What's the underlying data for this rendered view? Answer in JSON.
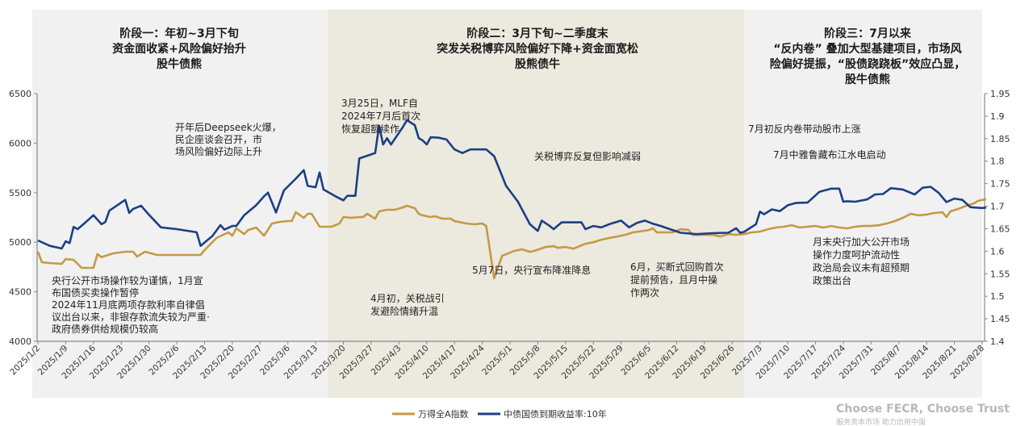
{
  "colors": {
    "phase1_bg": "#f1f1f1",
    "phase2_bg": "#ece9df",
    "phase3_bg": "#f1f1f1",
    "gold": "#c49a45",
    "navy": "#1c3f85",
    "axis": "#888888"
  },
  "phases": [
    {
      "lines": [
        "阶段一：年初~3月下旬",
        "资金面收紧+风险偏好抬升",
        "股牛债熊"
      ],
      "start_day": -3,
      "end_day": 73
    },
    {
      "lines": [
        "阶段二：3月下旬~二季度末",
        "突发关税博弈风险偏好下降+资金面宽松",
        "股熊债牛"
      ],
      "start_day": 73,
      "end_day": 178
    },
    {
      "lines": [
        "阶段三：7月以来",
        "“反内卷” 叠加大型基建项目，市场风",
        "险偏好提振，“股债跷跷板”效应凸显，",
        "股牛债熊"
      ],
      "start_day": 178,
      "end_day": 238
    }
  ],
  "annotations": [
    {
      "lines": [
        "开年后Deepseek火爆，",
        "民企座谈会召开，市",
        "场风险偏好边际上升"
      ]
    },
    {
      "lines": [
        "央行公开市场操作较为谨慎，1月宣",
        "布国债买卖操作暂停",
        "2024年11月底两项存款利率自律倡",
        "议出台以来，非银存款流失较为严重·",
        "政府债券供给规模仍较高"
      ]
    },
    {
      "lines": [
        "3月25日，MLF自",
        "2024年7月后首次",
        "恢复超额续作"
      ]
    },
    {
      "lines": [
        "关税博弈反复但影响减弱"
      ]
    },
    {
      "lines": [
        "4月初，关税战引",
        "发避险情绪升温"
      ]
    },
    {
      "lines": [
        "5月7日，央行宣布降准降息"
      ]
    },
    {
      "lines": [
        "6月，买断式回购首次",
        "提前预告，且月中操",
        "作两次"
      ]
    },
    {
      "lines": [
        "7月初反内卷带动股市上涨"
      ]
    },
    {
      "lines": [
        "7月中雅鲁藏布江水电启动"
      ]
    },
    {
      "lines": [
        "月末央行加大公开市场",
        "操作力度呵护流动性",
        "政治局会议未有超预期",
        "政策出台"
      ]
    }
  ],
  "branding": {
    "slogan": "Choose FECR, Choose Trust",
    "sub": "服务资本市场  助力信用中国"
  },
  "chart_data": {
    "type": "line",
    "title": "",
    "xlabel": "",
    "ylabel_left": "",
    "ylabel_right": "",
    "x_start_date": "2025/1/2",
    "x_unit": "days since 2025/1/2",
    "xlim": [
      0,
      239
    ],
    "ylim_left": [
      4000,
      6500
    ],
    "ylim_right": [
      1.4,
      1.95
    ],
    "yticks_left": [
      "6500",
      "6000",
      "5500",
      "5000",
      "4500",
      "4000"
    ],
    "yticks_right": [
      "1.95",
      "1.9",
      "1.85",
      "1.8",
      "1.75",
      "1.7",
      "1.65",
      "1.6",
      "1.55",
      "1.5",
      "1.45",
      "1.4"
    ],
    "xticks": [
      "2025/1/2",
      "2025/1/9",
      "2025/1/16",
      "2025/1/23",
      "2025/1/30",
      "2025/2/6",
      "2025/2/13",
      "2025/2/20",
      "2025/2/27",
      "2025/3/6",
      "2025/3/13",
      "2025/3/20",
      "2025/3/27",
      "2025/4/3",
      "2025/4/10",
      "2025/4/17",
      "2025/4/24",
      "2025/5/1",
      "2025/5/8",
      "2025/5/15",
      "2025/5/22",
      "2025/5/29",
      "2025/6/5",
      "2025/6/12",
      "2025/6/19",
      "2025/6/26",
      "2025/7/3",
      "2025/7/10",
      "2025/7/17",
      "2025/7/24",
      "2025/7/31",
      "2025/8/7",
      "2025/8/14",
      "2025/8/21",
      "2025/8/28"
    ],
    "legend_position": "bottom",
    "grid": false,
    "series": [
      {
        "name": "万得全A指数",
        "axis": "left",
        "points": [
          [
            0,
            4904
          ],
          [
            1,
            4798
          ],
          [
            3,
            4790
          ],
          [
            6,
            4782
          ],
          [
            7,
            4830
          ],
          [
            9,
            4822
          ],
          [
            11,
            4741
          ],
          [
            13,
            4741
          ],
          [
            14,
            4741
          ],
          [
            15,
            4880
          ],
          [
            16,
            4849
          ],
          [
            19,
            4888
          ],
          [
            22,
            4904
          ],
          [
            24,
            4904
          ],
          [
            25,
            4855
          ],
          [
            27,
            4904
          ],
          [
            30,
            4871
          ],
          [
            34,
            4871
          ],
          [
            36,
            4871
          ],
          [
            38,
            4871
          ],
          [
            39,
            4871
          ],
          [
            40,
            4871
          ],
          [
            41,
            4871
          ],
          [
            42,
            4920
          ],
          [
            45,
            5042
          ],
          [
            48,
            5099
          ],
          [
            49,
            5066
          ],
          [
            50,
            5140
          ],
          [
            52,
            5082
          ],
          [
            53,
            5123
          ],
          [
            55,
            5148
          ],
          [
            57,
            5066
          ],
          [
            59,
            5189
          ],
          [
            61,
            5205
          ],
          [
            63,
            5213
          ],
          [
            64,
            5213
          ],
          [
            65,
            5303
          ],
          [
            67,
            5246
          ],
          [
            68,
            5287
          ],
          [
            69,
            5287
          ],
          [
            71,
            5156
          ],
          [
            72,
            5156
          ],
          [
            74,
            5156
          ],
          [
            76,
            5189
          ],
          [
            77,
            5254
          ],
          [
            79,
            5246
          ],
          [
            81,
            5254
          ],
          [
            82,
            5254
          ],
          [
            83,
            5287
          ],
          [
            85,
            5238
          ],
          [
            86,
            5311
          ],
          [
            88,
            5327
          ],
          [
            90,
            5327
          ],
          [
            92,
            5352
          ],
          [
            93,
            5368
          ],
          [
            95,
            5344
          ],
          [
            96,
            5287
          ],
          [
            97,
            5271
          ],
          [
            99,
            5254
          ],
          [
            100,
            5262
          ],
          [
            102,
            5238
          ],
          [
            104,
            5238
          ],
          [
            105,
            5213
          ],
          [
            106,
            5205
          ],
          [
            108,
            5189
          ],
          [
            110,
            5181
          ],
          [
            112,
            5189
          ],
          [
            113,
            5164
          ],
          [
            115,
            4635
          ],
          [
            117,
            4862
          ],
          [
            120,
            4911
          ],
          [
            122,
            4928
          ],
          [
            124,
            4903
          ],
          [
            125,
            4911
          ],
          [
            128,
            4952
          ],
          [
            130,
            4960
          ],
          [
            131,
            4943
          ],
          [
            133,
            4952
          ],
          [
            135,
            4935
          ],
          [
            137,
            4968
          ],
          [
            138,
            4984
          ],
          [
            140,
            5000
          ],
          [
            142,
            5025
          ],
          [
            144,
            5042
          ],
          [
            146,
            5058
          ],
          [
            148,
            5074
          ],
          [
            150,
            5099
          ],
          [
            152,
            5111
          ],
          [
            154,
            5123
          ],
          [
            155,
            5140
          ],
          [
            156,
            5099
          ],
          [
            158,
            5099
          ],
          [
            160,
            5099
          ],
          [
            162,
            5131
          ],
          [
            164,
            5123
          ],
          [
            165,
            5074
          ],
          [
            168,
            5074
          ],
          [
            170,
            5074
          ],
          [
            172,
            5058
          ],
          [
            174,
            5082
          ],
          [
            176,
            5074
          ],
          [
            178,
            5082
          ],
          [
            180,
            5099
          ],
          [
            182,
            5107
          ],
          [
            184,
            5131
          ],
          [
            186,
            5148
          ],
          [
            188,
            5156
          ],
          [
            190,
            5172
          ],
          [
            192,
            5148
          ],
          [
            194,
            5156
          ],
          [
            196,
            5164
          ],
          [
            198,
            5148
          ],
          [
            200,
            5164
          ],
          [
            202,
            5148
          ],
          [
            204,
            5140
          ],
          [
            206,
            5156
          ],
          [
            208,
            5164
          ],
          [
            210,
            5164
          ],
          [
            212,
            5172
          ],
          [
            214,
            5189
          ],
          [
            216,
            5213
          ],
          [
            218,
            5246
          ],
          [
            220,
            5287
          ],
          [
            222,
            5271
          ],
          [
            224,
            5279
          ],
          [
            226,
            5295
          ],
          [
            228,
            5303
          ],
          [
            229,
            5254
          ],
          [
            230,
            5311
          ],
          [
            232,
            5336
          ],
          [
            234,
            5368
          ],
          [
            236,
            5393
          ],
          [
            237,
            5418
          ],
          [
            238,
            5426
          ],
          [
            239,
            5434
          ]
        ]
      },
      {
        "name": "中债国债到期收益率:10年",
        "axis": "right",
        "points": [
          [
            0,
            1.624
          ],
          [
            3,
            1.612
          ],
          [
            6,
            1.606
          ],
          [
            7,
            1.622
          ],
          [
            8,
            1.618
          ],
          [
            9,
            1.654
          ],
          [
            10,
            1.649
          ],
          [
            12,
            1.664
          ],
          [
            14,
            1.68
          ],
          [
            16,
            1.66
          ],
          [
            17,
            1.665
          ],
          [
            18,
            1.69
          ],
          [
            20,
            1.702
          ],
          [
            22,
            1.714
          ],
          [
            23,
            1.685
          ],
          [
            24,
            1.694
          ],
          [
            26,
            1.701
          ],
          [
            28,
            1.681
          ],
          [
            31,
            1.653
          ],
          [
            35,
            1.649
          ],
          [
            40,
            1.642
          ],
          [
            41,
            1.612
          ],
          [
            44,
            1.634
          ],
          [
            46,
            1.658
          ],
          [
            47,
            1.648
          ],
          [
            49,
            1.656
          ],
          [
            50,
            1.656
          ],
          [
            52,
            1.68
          ],
          [
            55,
            1.702
          ],
          [
            57,
            1.722
          ],
          [
            58,
            1.73
          ],
          [
            60,
            1.686
          ],
          [
            62,
            1.735
          ],
          [
            65,
            1.761
          ],
          [
            67,
            1.78
          ],
          [
            68,
            1.745
          ],
          [
            70,
            1.742
          ],
          [
            71,
            1.775
          ],
          [
            72,
            1.737
          ],
          [
            75,
            1.722
          ],
          [
            77,
            1.713
          ],
          [
            78,
            1.723
          ],
          [
            80,
            1.723
          ],
          [
            81,
            1.806
          ],
          [
            84,
            1.815
          ],
          [
            85,
            1.818
          ],
          [
            86,
            1.879
          ],
          [
            87,
            1.837
          ],
          [
            88,
            1.851
          ],
          [
            89,
            1.837
          ],
          [
            92,
            1.876
          ],
          [
            93,
            1.891
          ],
          [
            95,
            1.88
          ],
          [
            96,
            1.851
          ],
          [
            97,
            1.846
          ],
          [
            98,
            1.837
          ],
          [
            99,
            1.853
          ],
          [
            101,
            1.852
          ],
          [
            103,
            1.848
          ],
          [
            105,
            1.826
          ],
          [
            107,
            1.818
          ],
          [
            109,
            1.826
          ],
          [
            111,
            1.826
          ],
          [
            113,
            1.826
          ],
          [
            115,
            1.811
          ],
          [
            118,
            1.745
          ],
          [
            121,
            1.71
          ],
          [
            124,
            1.66
          ],
          [
            126,
            1.645
          ],
          [
            127,
            1.668
          ],
          [
            129,
            1.656
          ],
          [
            130,
            1.649
          ],
          [
            132,
            1.664
          ],
          [
            135,
            1.664
          ],
          [
            137,
            1.664
          ],
          [
            138,
            1.649
          ],
          [
            140,
            1.656
          ],
          [
            142,
            1.653
          ],
          [
            144,
            1.66
          ],
          [
            147,
            1.668
          ],
          [
            149,
            1.653
          ],
          [
            151,
            1.663
          ],
          [
            153,
            1.668
          ],
          [
            155,
            1.661
          ],
          [
            157,
            1.656
          ],
          [
            159,
            1.65
          ],
          [
            162,
            1.641
          ],
          [
            166,
            1.638
          ],
          [
            170,
            1.64
          ],
          [
            174,
            1.641
          ],
          [
            176,
            1.651
          ],
          [
            177,
            1.641
          ],
          [
            178,
            1.643
          ],
          [
            181,
            1.66
          ],
          [
            182,
            1.688
          ],
          [
            183,
            1.682
          ],
          [
            185,
            1.693
          ],
          [
            187,
            1.689
          ],
          [
            189,
            1.702
          ],
          [
            191,
            1.707
          ],
          [
            194,
            1.708
          ],
          [
            197,
            1.732
          ],
          [
            200,
            1.739
          ],
          [
            202,
            1.739
          ],
          [
            203,
            1.71
          ],
          [
            204,
            1.711
          ],
          [
            206,
            1.71
          ],
          [
            209,
            1.715
          ],
          [
            211,
            1.726
          ],
          [
            213,
            1.727
          ],
          [
            215,
            1.74
          ],
          [
            218,
            1.737
          ],
          [
            221,
            1.726
          ],
          [
            223,
            1.741
          ],
          [
            225,
            1.743
          ],
          [
            227,
            1.73
          ],
          [
            229,
            1.709
          ],
          [
            231,
            1.717
          ],
          [
            233,
            1.714
          ],
          [
            235,
            1.698
          ],
          [
            236,
            1.697
          ],
          [
            238,
            1.696
          ],
          [
            239,
            1.697
          ]
        ]
      }
    ]
  }
}
